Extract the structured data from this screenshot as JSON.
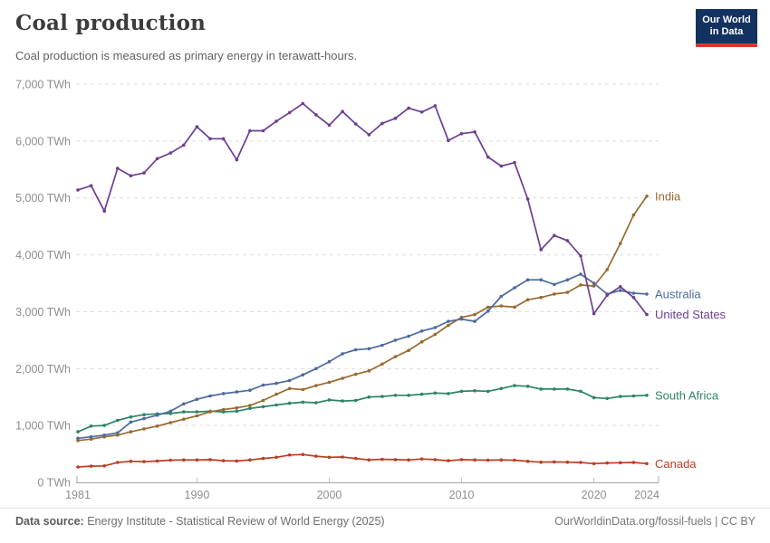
{
  "header": {
    "title": "Coal production",
    "subtitle": "Coal production is measured as primary energy in terawatt-hours.",
    "logo_line1": "Our World",
    "logo_line2": "in Data"
  },
  "footer": {
    "datasource_label": "Data source:",
    "datasource_text": " Energy Institute - Statistical Review of World Energy (2025)",
    "link": "OurWorldinData.org/fossil-fuels",
    "separator": " | ",
    "license": "CC BY"
  },
  "chart_data": {
    "type": "line",
    "title": "Coal production",
    "subtitle": "Coal production is measured as primary energy in terawatt-hours.",
    "unit": "TWh",
    "ylim": [
      0,
      7000
    ],
    "y_ticks": [
      0,
      1000,
      2000,
      3000,
      4000,
      5000,
      6000,
      7000
    ],
    "y_tick_suffix": " TWh",
    "x_ticks": [
      1981,
      1990,
      2000,
      2010,
      2020,
      2024
    ],
    "grid": "dashed-horizontal",
    "legend_position": "right-end-labels",
    "years": [
      1981,
      1982,
      1983,
      1984,
      1985,
      1986,
      1987,
      1988,
      1989,
      1990,
      1991,
      1992,
      1993,
      1994,
      1995,
      1996,
      1997,
      1998,
      1999,
      2000,
      2001,
      2002,
      2003,
      2004,
      2005,
      2006,
      2007,
      2008,
      2009,
      2010,
      2011,
      2012,
      2013,
      2014,
      2015,
      2016,
      2017,
      2018,
      2019,
      2020,
      2021,
      2022,
      2023,
      2024
    ],
    "series": [
      {
        "name": "South Africa",
        "color": "#2C8465",
        "values": [
          890,
          990,
          1000,
          1090,
          1150,
          1190,
          1205,
          1210,
          1240,
          1240,
          1250,
          1240,
          1250,
          1300,
          1330,
          1360,
          1390,
          1410,
          1400,
          1450,
          1430,
          1440,
          1500,
          1510,
          1530,
          1530,
          1550,
          1570,
          1560,
          1600,
          1610,
          1600,
          1650,
          1700,
          1690,
          1640,
          1640,
          1640,
          1600,
          1490,
          1475,
          1510,
          1520,
          1530
        ]
      },
      {
        "name": "Canada",
        "color": "#BC3D22",
        "values": [
          270,
          285,
          290,
          350,
          370,
          365,
          375,
          390,
          395,
          395,
          400,
          380,
          375,
          395,
          420,
          440,
          480,
          490,
          460,
          440,
          445,
          420,
          395,
          405,
          400,
          395,
          410,
          400,
          380,
          400,
          395,
          390,
          395,
          390,
          370,
          355,
          360,
          355,
          350,
          330,
          340,
          345,
          350,
          330
        ]
      },
      {
        "name": "India",
        "color": "#996A2E",
        "values": [
          735,
          760,
          800,
          830,
          890,
          940,
          990,
          1050,
          1110,
          1170,
          1240,
          1280,
          1310,
          1350,
          1440,
          1550,
          1650,
          1630,
          1700,
          1760,
          1830,
          1900,
          1960,
          2080,
          2210,
          2320,
          2470,
          2600,
          2760,
          2900,
          2950,
          3080,
          3100,
          3080,
          3210,
          3250,
          3310,
          3340,
          3470,
          3450,
          3740,
          4200,
          4700,
          5030
        ]
      },
      {
        "name": "Australia",
        "color": "#4C6A9C",
        "values": [
          775,
          800,
          830,
          870,
          1060,
          1120,
          1180,
          1250,
          1380,
          1460,
          1520,
          1560,
          1590,
          1620,
          1710,
          1740,
          1790,
          1890,
          2000,
          2120,
          2260,
          2330,
          2350,
          2410,
          2500,
          2570,
          2660,
          2720,
          2830,
          2870,
          2830,
          3010,
          3270,
          3420,
          3560,
          3560,
          3480,
          3560,
          3660,
          3500,
          3310,
          3375,
          3325,
          3310
        ]
      },
      {
        "name": "United States",
        "color": "#6D3E91",
        "values": [
          5140,
          5215,
          4770,
          5520,
          5390,
          5440,
          5690,
          5790,
          5930,
          6250,
          6040,
          6040,
          5670,
          6180,
          6180,
          6350,
          6500,
          6660,
          6460,
          6280,
          6520,
          6300,
          6110,
          6310,
          6400,
          6580,
          6510,
          6620,
          6010,
          6130,
          6160,
          5720,
          5560,
          5620,
          4980,
          4090,
          4340,
          4250,
          3980,
          2965,
          3290,
          3440,
          3250,
          2950
        ]
      }
    ],
    "colors": {
      "axis": "#a5a5a5",
      "grid": "#dcdcdc",
      "tick_label": "#8e8e8e",
      "logo_bg": "#14325F",
      "logo_underline": "#D8392C"
    }
  }
}
